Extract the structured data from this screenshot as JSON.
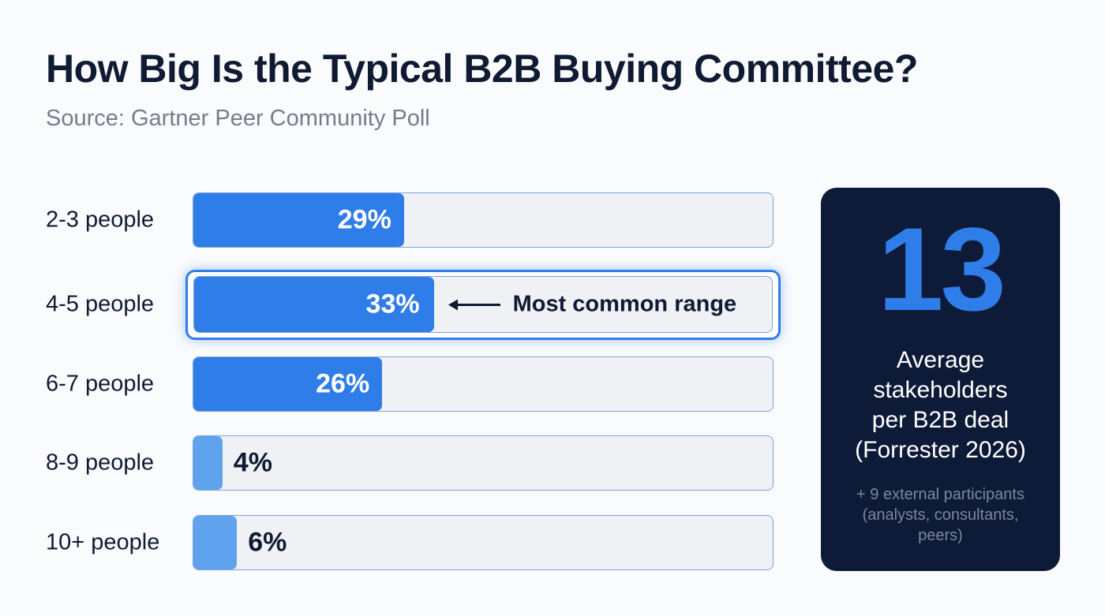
{
  "title": "How Big Is the Typical B2B Buying Committee?",
  "subtitle": "Source: Gartner Peer Community Poll",
  "chart_data": {
    "type": "bar",
    "orientation": "horizontal",
    "title": "How Big Is the Typical B2B Buying Committee?",
    "subtitle": "Source: Gartner Peer Community Poll",
    "categories": [
      "2-3 people",
      "4-5 people",
      "6-7 people",
      "8-9 people",
      "10+ people"
    ],
    "values": [
      29,
      33,
      26,
      4,
      6
    ],
    "value_labels": [
      "29%",
      "33%",
      "26%",
      "4%",
      "6%"
    ],
    "unit": "%",
    "highlight_index": 1,
    "annotation": "Most common range",
    "colors": {
      "major": "#2f7de8",
      "minor": "#5fa2ee",
      "track": "#eff1f5"
    }
  },
  "stat_card": {
    "number": "13",
    "description_lines": [
      "Average",
      "stakeholders",
      "per B2B deal",
      "(Forrester 2026)"
    ],
    "note_lines": [
      "+ 9 external participants",
      "(analysts, consultants,",
      "peers)"
    ]
  }
}
